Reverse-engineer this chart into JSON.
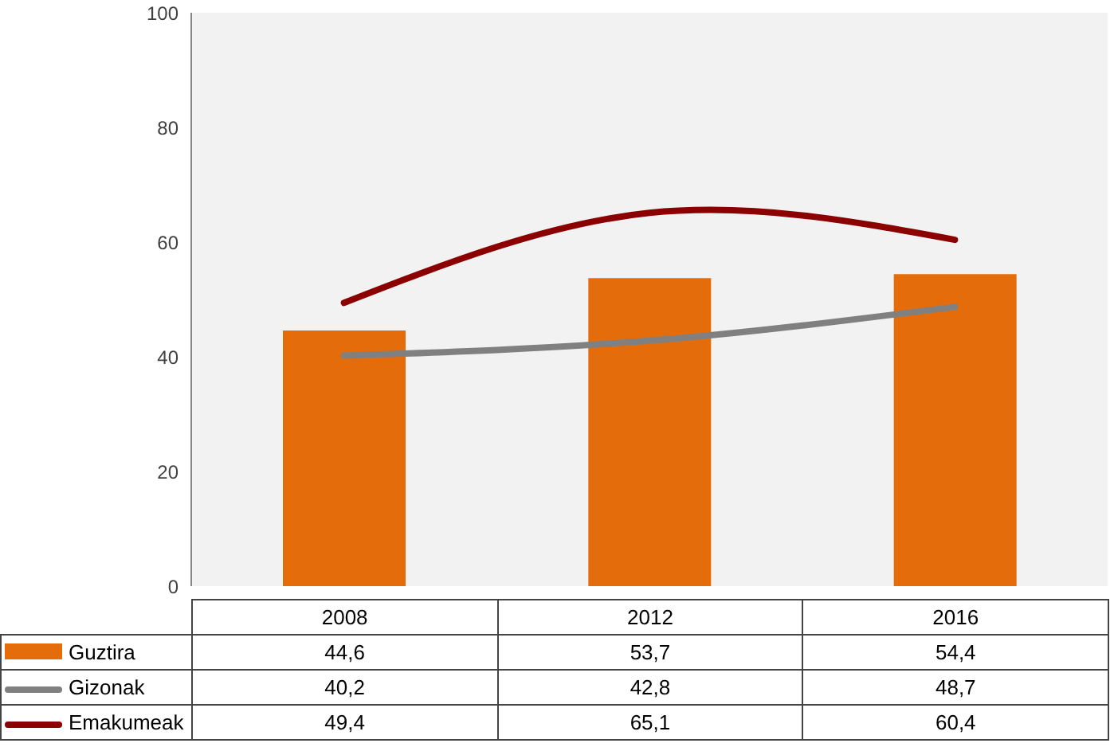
{
  "chart_data": {
    "type": "bar",
    "categories": [
      "2008",
      "2012",
      "2016"
    ],
    "series": [
      {
        "name": "Guztira",
        "color": "#e46c0a",
        "values": [
          44.6,
          53.7,
          54.4
        ],
        "value_labels": [
          "44,6",
          "53,7",
          "54,4"
        ]
      },
      {
        "name": "Gizonak",
        "type": "line",
        "color": "#808080",
        "values": [
          40.2,
          42.8,
          48.7
        ],
        "value_labels": [
          "40,2",
          "42,8",
          "48,7"
        ]
      },
      {
        "name": "Emakumeak",
        "type": "line",
        "color": "#8b0000",
        "values": [
          49.4,
          65.1,
          60.4
        ],
        "value_labels": [
          "49,4",
          "65,1",
          "60,4"
        ]
      }
    ],
    "ylim": [
      0,
      100
    ],
    "yticks": [
      0,
      20,
      40,
      60,
      80,
      100
    ],
    "grid": false,
    "legend": "bottom",
    "marker": "none",
    "line_style": "solid"
  }
}
